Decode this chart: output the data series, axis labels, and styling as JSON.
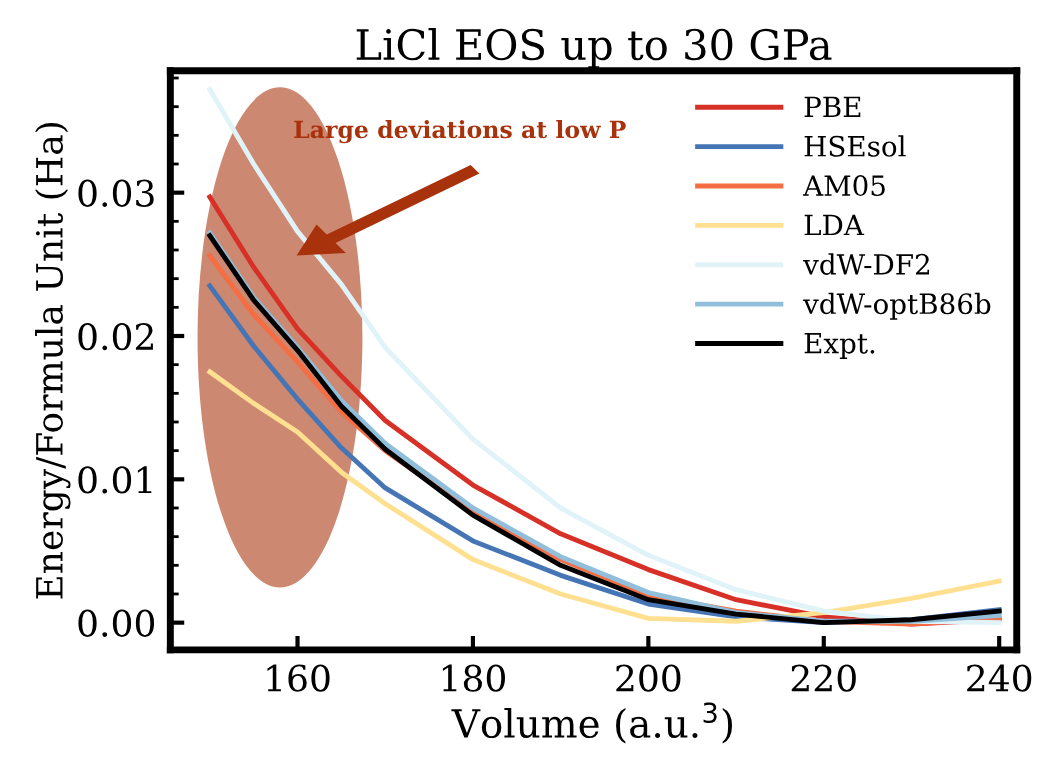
{
  "chart_data": {
    "type": "line",
    "title": "LiCl EOS up to 30 GPa",
    "xlabel": "Volume (a.u.$^{3}$)",
    "ylabel": "Energy/Formula Unit (Ha)",
    "x": [
      150,
      155,
      160,
      165,
      170,
      180,
      190,
      200,
      210,
      220,
      230,
      240
    ],
    "series": [
      {
        "name": "PBE",
        "color": "#d73027",
        "values": [
          0.0297,
          0.0248,
          0.0205,
          0.0172,
          0.0141,
          0.0096,
          0.0062,
          0.0037,
          0.0016,
          0.0004,
          -0.0001,
          0.0002
        ]
      },
      {
        "name": "HSEsol",
        "color": "#4575b4",
        "values": [
          0.0235,
          0.0193,
          0.0156,
          0.0122,
          0.0094,
          0.0057,
          0.0033,
          0.0013,
          0.0004,
          0.0,
          0.0002,
          0.0009
        ]
      },
      {
        "name": "AM05",
        "color": "#f46d43",
        "values": [
          0.0256,
          0.0215,
          0.0182,
          0.0147,
          0.012,
          0.0077,
          0.0044,
          0.0019,
          0.0008,
          0.0001,
          -0.0001,
          0.0003
        ]
      },
      {
        "name": "LDA",
        "color": "#fee090",
        "values": [
          0.0175,
          0.0153,
          0.0133,
          0.0105,
          0.0083,
          0.0044,
          0.002,
          0.0003,
          0.0001,
          0.0007,
          0.0017,
          0.0029
        ]
      },
      {
        "name": "vdW-DF2",
        "color": "#e0f3f8",
        "values": [
          0.0372,
          0.032,
          0.0273,
          0.0236,
          0.0192,
          0.0128,
          0.008,
          0.0047,
          0.0023,
          0.0008,
          0.0001,
          0.0
        ]
      },
      {
        "name": "vdW-optB86b",
        "color": "#91bfdb",
        "values": [
          0.0272,
          0.0227,
          0.0192,
          0.0155,
          0.0125,
          0.008,
          0.0046,
          0.0021,
          0.0007,
          0.0001,
          0.0001,
          0.0005
        ]
      },
      {
        "name": "Expt.",
        "color": "#000000",
        "values": [
          0.027,
          0.0225,
          0.019,
          0.0151,
          0.0121,
          0.0075,
          0.004,
          0.0016,
          0.0006,
          0.0,
          0.0002,
          0.0008
        ]
      }
    ],
    "xlim": [
      145.5,
      242
    ],
    "xticks": [
      160,
      180,
      200,
      220,
      240
    ],
    "ylim": [
      -0.0019,
      0.0385
    ],
    "yticks": [
      {
        "value": 0,
        "label": "0.00"
      },
      {
        "value": 0.01,
        "label": "0.01"
      },
      {
        "value": 0.02,
        "label": "0.02"
      },
      {
        "value": 0.03,
        "label": "0.03"
      }
    ],
    "annotations": [
      "Large deviations at low P"
    ],
    "legend": "top right",
    "grid": false,
    "marker": "none",
    "line_style": "solid"
  }
}
